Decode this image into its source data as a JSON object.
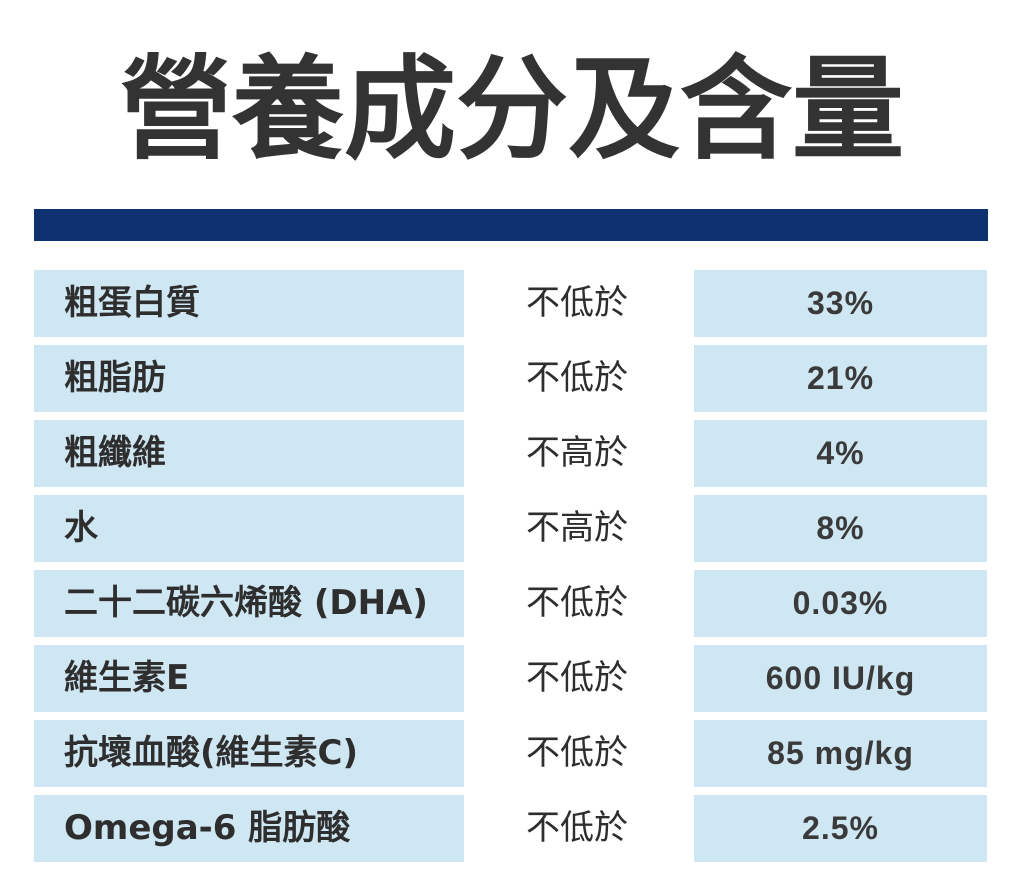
{
  "title": "營養成分及含量",
  "colors": {
    "header_bar": "#0e3270",
    "cell_bg": "#cfe6f3",
    "text": "#2e2e2e"
  },
  "rows": [
    {
      "name": "粗蛋白質",
      "condition": "不低於",
      "value": "33%"
    },
    {
      "name": "粗脂肪",
      "condition": "不低於",
      "value": "21%"
    },
    {
      "name": "粗纖維",
      "condition": "不高於",
      "value": "4%"
    },
    {
      "name": "水",
      "condition": "不高於",
      "value": "8%"
    },
    {
      "name": "二十二碳六烯酸 (DHA)",
      "condition": "不低於",
      "value": "0.03%"
    },
    {
      "name": "維生素E",
      "condition": "不低於",
      "value": "600 IU/kg"
    },
    {
      "name": "抗壞血酸(維生素C)",
      "condition": "不低於",
      "value": "85 mg/kg"
    },
    {
      "name": "Omega-6 脂肪酸",
      "condition": "不低於",
      "value": "2.5%"
    }
  ]
}
